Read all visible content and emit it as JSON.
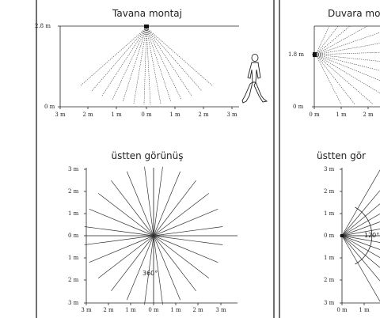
{
  "left_panel": {
    "side_title": "Tavana montaj",
    "side_height_label": "2.8 m",
    "side_zero_label": "0 m",
    "side_x_ticks": [
      "3 m",
      "2 m",
      "1 m",
      "0 m",
      "1 m",
      "2 m",
      "3 m"
    ],
    "top_title": "üstten görünüş",
    "top_y_ticks": [
      "3 m",
      "2 m",
      "1 m",
      "0 m",
      "1 m",
      "2 m",
      "3 m"
    ],
    "top_x_ticks": [
      "3 m",
      "2 m",
      "1 m",
      "0 m",
      "1 m",
      "2 m",
      "3 m"
    ],
    "angle_label": "360°"
  },
  "right_panel": {
    "side_title": "Duvara mo",
    "side_height_label": "1.8 m",
    "side_zero_label": "0 m",
    "side_x_ticks": [
      "0 m",
      "1 m",
      "2 m"
    ],
    "top_title": "üstten gör",
    "top_y_ticks": [
      "3 m",
      "2 m",
      "1 m",
      "0 m",
      "1 m",
      "2 m",
      "3 m"
    ],
    "top_x_ticks": [
      "0 m",
      "1 m"
    ],
    "angle_label": "120°"
  }
}
